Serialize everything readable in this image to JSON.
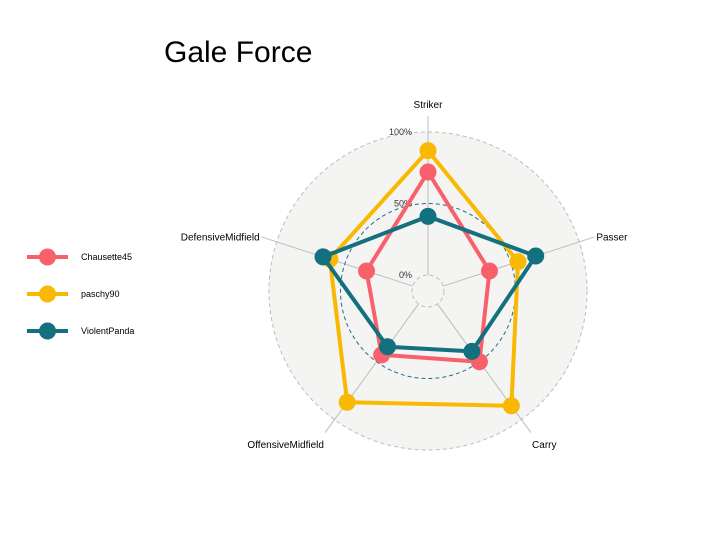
{
  "chart_data": {
    "type": "radar",
    "title": "Gale Force",
    "axes": [
      "Striker",
      "Passer",
      "Carry",
      "OffensiveMidfield",
      "DefensiveMidfield"
    ],
    "grid_labels": [
      "0%",
      "50%",
      "100%"
    ],
    "range": [
      0,
      100
    ],
    "legend_position": "left",
    "series": [
      {
        "name": "Chausette45",
        "color": "#F8616B",
        "values": [
          72,
          34,
          50,
          44,
          34
        ]
      },
      {
        "name": "paschy90",
        "color": "#F9B801",
        "values": [
          87,
          55,
          88,
          85,
          61
        ]
      },
      {
        "name": "ViolentPanda",
        "color": "#13707E",
        "values": [
          41,
          68,
          41,
          37,
          66
        ]
      }
    ],
    "colors": {
      "background_circle": "#F4F4F3",
      "grid_line": "#BDBDBD",
      "mid_grid": "#1F6E8C"
    }
  }
}
